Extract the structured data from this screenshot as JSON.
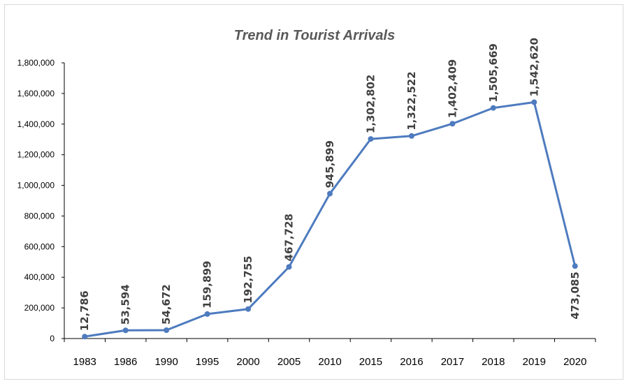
{
  "chart_data": {
    "type": "line",
    "title": "Trend in Tourist Arrivals",
    "categories": [
      "1983",
      "1986",
      "1990",
      "1995",
      "2000",
      "2005",
      "2010",
      "2015",
      "2016",
      "2017",
      "2018",
      "2019",
      "2020"
    ],
    "series": [
      {
        "values": [
          12786,
          53594,
          54672,
          159899,
          192755,
          467728,
          945899,
          1302802,
          1322522,
          1402409,
          1505669,
          1542620,
          473085
        ],
        "labels": [
          "12,786",
          "53,594",
          "54,672",
          "159,899",
          "192,755",
          "467,728",
          "945,899",
          "1,302,802",
          "1,322,522",
          "1,402,409",
          "1,505,669",
          "1,542,620",
          "473,085"
        ],
        "color": "#4e7bbf"
      }
    ],
    "yticks": [
      "0",
      "200,000",
      "400,000",
      "600,000",
      "800,000",
      "1,000,000",
      "1,200,000",
      "1,400,000",
      "1,600,000",
      "1,800,000"
    ],
    "ylim": [
      0,
      1800000
    ],
    "grid": false,
    "legend": "none"
  }
}
